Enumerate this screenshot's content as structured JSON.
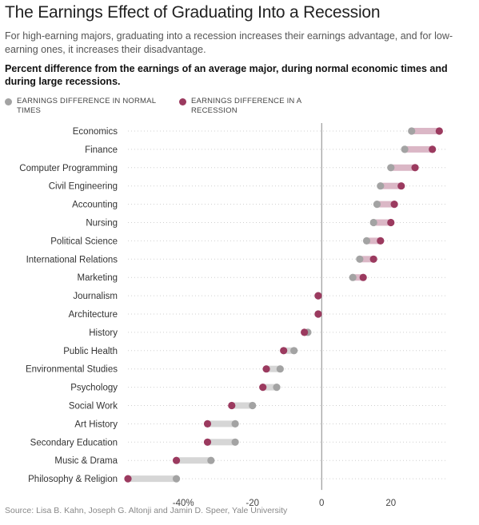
{
  "title": "The Earnings Effect of Graduating Into a Recession",
  "subtitle": "For high-earning majors, graduating into a recession increases their earnings advantage, and for low-earning ones, it increases their disadvantage.",
  "chart_heading": "Percent difference from the earnings of an average major, during normal economic times and during large recessions.",
  "legend": {
    "normal": "EARNINGS DIFFERENCE IN NORMAL TIMES",
    "recession": "EARNINGS DIFFERENCE IN A RECESSION"
  },
  "colors": {
    "normal": "#a3a3a3",
    "recession": "#9b3a5f",
    "bar_up": "#dbb7c6",
    "bar_down": "#d6d6d6"
  },
  "source": "Source: Lisa B. Kahn, Joseph G. Altonji and Jamin D. Speer, Yale University",
  "chart_data": {
    "type": "dumbbell",
    "xlim": [
      -56,
      36
    ],
    "x_ticks": [
      {
        "value": -40,
        "label": "-40%"
      },
      {
        "value": -20,
        "label": "-20"
      },
      {
        "value": 0,
        "label": "0"
      },
      {
        "value": 20,
        "label": "20"
      }
    ],
    "categories": [
      "Economics",
      "Finance",
      "Computer Programming",
      "Civil Engineering",
      "Accounting",
      "Nursing",
      "Political Science",
      "International Relations",
      "Marketing",
      "Journalism",
      "Architecture",
      "History",
      "Public Health",
      "Environmental Studies",
      "Psychology",
      "Social Work",
      "Art History",
      "Secondary Education",
      "Music & Drama",
      "Philosophy & Religion"
    ],
    "series": [
      {
        "name": "EARNINGS DIFFERENCE IN NORMAL TIMES",
        "values": [
          26,
          24,
          20,
          17,
          16,
          15,
          13,
          11,
          9,
          -1,
          -1,
          -4,
          -8,
          -12,
          -13,
          -20,
          -25,
          -25,
          -32,
          -42
        ]
      },
      {
        "name": "EARNINGS DIFFERENCE IN A RECESSION",
        "values": [
          34,
          32,
          27,
          23,
          21,
          20,
          17,
          15,
          12,
          -1,
          -1,
          -5,
          -11,
          -16,
          -17,
          -26,
          -33,
          -33,
          -42,
          -56
        ]
      }
    ]
  }
}
